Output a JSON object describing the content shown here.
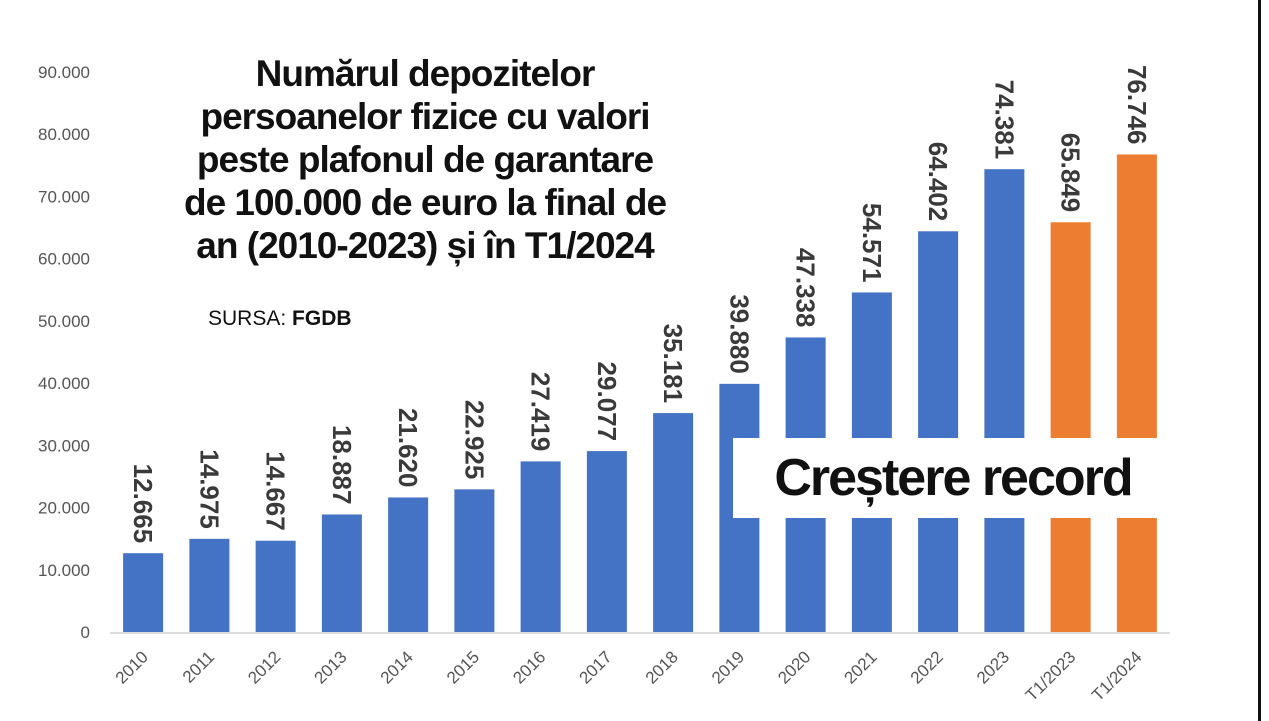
{
  "chart_data": {
    "type": "bar",
    "title_lines": [
      "Numărul depozitelor",
      "persoanelor fizice cu valori",
      "peste plafonul de garantare",
      "de 100.000 de euro la final de",
      "an (2010-2023) și în T1/2024"
    ],
    "source_label": "SURSA:",
    "source_name": "FGDB",
    "annotation": "Creștere record",
    "categories": [
      "2010",
      "2011",
      "2012",
      "2013",
      "2014",
      "2015",
      "2016",
      "2017",
      "2018",
      "2019",
      "2020",
      "2021",
      "2022",
      "2023",
      "T1/2023",
      "T1/2024"
    ],
    "values": [
      12665,
      14975,
      14667,
      18887,
      21620,
      22925,
      27419,
      29077,
      35181,
      39880,
      47338,
      54571,
      64402,
      74381,
      65849,
      76746
    ],
    "value_labels": [
      "12.665",
      "14.975",
      "14.667",
      "18.887",
      "21.620",
      "22.925",
      "27.419",
      "29.077",
      "35.181",
      "39.880",
      "47.338",
      "54.571",
      "64.402",
      "74.381",
      "65.849",
      "76.746"
    ],
    "bar_colors": [
      "#4472C4",
      "#4472C4",
      "#4472C4",
      "#4472C4",
      "#4472C4",
      "#4472C4",
      "#4472C4",
      "#4472C4",
      "#4472C4",
      "#4472C4",
      "#4472C4",
      "#4472C4",
      "#4472C4",
      "#4472C4",
      "#ED7D31",
      "#ED7D31"
    ],
    "y_ticks": [
      0,
      10000,
      20000,
      30000,
      40000,
      50000,
      60000,
      70000,
      80000,
      90000
    ],
    "y_tick_labels": [
      "0",
      "10.000",
      "20.000",
      "30.000",
      "40.000",
      "50.000",
      "60.000",
      "70.000",
      "80.000",
      "90.000"
    ],
    "ylim": [
      0,
      90000
    ],
    "grid": false,
    "legend": "none"
  }
}
